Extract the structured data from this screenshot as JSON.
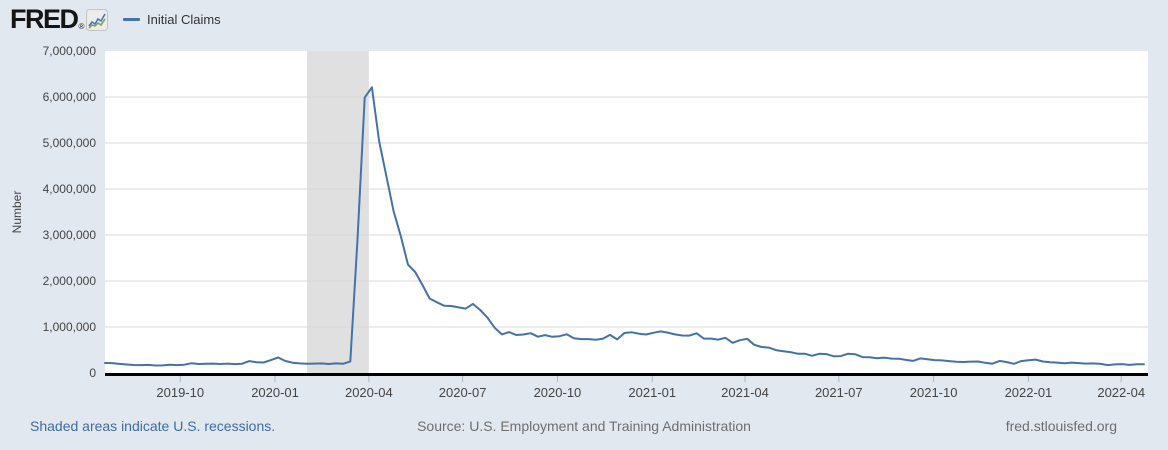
{
  "colors": {
    "background": "#e2e8f0",
    "link_blue": "#3c6ca8",
    "footer_gray": "#6e6e6e"
  },
  "header": {
    "brand": "FRED",
    "registered": "®",
    "icon": {
      "name": "fred-sparkline-icon",
      "blue": "#4a78b8",
      "green": "#7fa653"
    },
    "legend": {
      "label": "Initial Claims"
    }
  },
  "footer": {
    "left": "Shaded areas indicate U.S. recessions.",
    "center": "Source: U.S. Employment and Training Administration",
    "right": "fred.stlouisfed.org"
  },
  "chart_data": {
    "type": "line",
    "title": "",
    "xlabel": "",
    "ylabel": "Number",
    "ylim": [
      0,
      7000000
    ],
    "xlim": [
      "2019-07-20",
      "2022-04-27"
    ],
    "grid": "horizontal",
    "legend_position": "top-left-header",
    "recession": {
      "start": "2020-02-01",
      "end": "2020-04-01",
      "note": "Shaded areas indicate U.S. recessions."
    },
    "colors": {
      "plot_bg": "#ffffff",
      "gridline": "#d9d9d9",
      "recession_band": "#e0e0e0",
      "axis": "#000000",
      "tick_mark": "#a9b8c6",
      "tick_text": "#444444"
    },
    "y_ticks": [
      {
        "value": 0,
        "label": "0"
      },
      {
        "value": 1000000,
        "label": "1,000,000"
      },
      {
        "value": 2000000,
        "label": "2,000,000"
      },
      {
        "value": 3000000,
        "label": "3,000,000"
      },
      {
        "value": 4000000,
        "label": "4,000,000"
      },
      {
        "value": 5000000,
        "label": "5,000,000"
      },
      {
        "value": 6000000,
        "label": "6,000,000"
      },
      {
        "value": 7000000,
        "label": "7,000,000"
      }
    ],
    "x_ticks": [
      {
        "date": "2019-10-01",
        "label": "2019-10"
      },
      {
        "date": "2020-01-01",
        "label": "2020-01"
      },
      {
        "date": "2020-04-01",
        "label": "2020-04"
      },
      {
        "date": "2020-07-01",
        "label": "2020-07"
      },
      {
        "date": "2020-10-01",
        "label": "2020-10"
      },
      {
        "date": "2021-01-01",
        "label": "2021-01"
      },
      {
        "date": "2021-04-01",
        "label": "2021-04"
      },
      {
        "date": "2021-07-01",
        "label": "2021-07"
      },
      {
        "date": "2021-10-01",
        "label": "2021-10"
      },
      {
        "date": "2022-01-01",
        "label": "2022-01"
      },
      {
        "date": "2022-04-01",
        "label": "2022-04"
      }
    ],
    "x_start": "2019-07-20",
    "step_days": 7,
    "series": [
      {
        "name": "Initial Claims",
        "color": "#4572a7",
        "values": [
          218000,
          215000,
          197000,
          185000,
          174000,
          172000,
          175000,
          162000,
          166000,
          180000,
          172000,
          181000,
          212000,
          196000,
          200000,
          204000,
          195000,
          205000,
          193000,
          203000,
          258000,
          235000,
          228000,
          281000,
          337000,
          261000,
          223000,
          209000,
          202000,
          205000,
          209000,
          196000,
          209000,
          200000,
          252000,
          2898000,
          5986000,
          6211000,
          5044000,
          4275000,
          3517000,
          2976000,
          2357000,
          2196000,
          1916000,
          1620000,
          1537000,
          1463000,
          1457000,
          1425000,
          1399000,
          1503000,
          1370000,
          1205000,
          984000,
          839000,
          890000,
          826000,
          838000,
          866000,
          790000,
          824000,
          786000,
          799000,
          842000,
          757000,
          738000,
          738000,
          723000,
          743000,
          828000,
          730000,
          869000,
          885000,
          855000,
          836000,
          875000,
          905000,
          878000,
          840000,
          816000,
          813000,
          862000,
          747000,
          748000,
          725000,
          765000,
          657000,
          714000,
          744000,
          612000,
          566000,
          553000,
          498000,
          473000,
          455000,
          420000,
          419000,
          374000,
          418000,
          411000,
          364000,
          367000,
          419000,
          406000,
          345000,
          343000,
          320000,
          335000,
          313000,
          311000,
          284000,
          263000,
          317000,
          299000,
          280000,
          273000,
          259000,
          245000,
          240000,
          247000,
          250000,
          222000,
          203000,
          263000,
          236000,
          199000,
          258000,
          278000,
          291000,
          249000,
          234000,
          225000,
          214000,
          227000,
          215000,
          204000,
          208000,
          198000,
          172000,
          188000,
          193000,
          175000,
          190000,
          192000
        ]
      }
    ]
  }
}
